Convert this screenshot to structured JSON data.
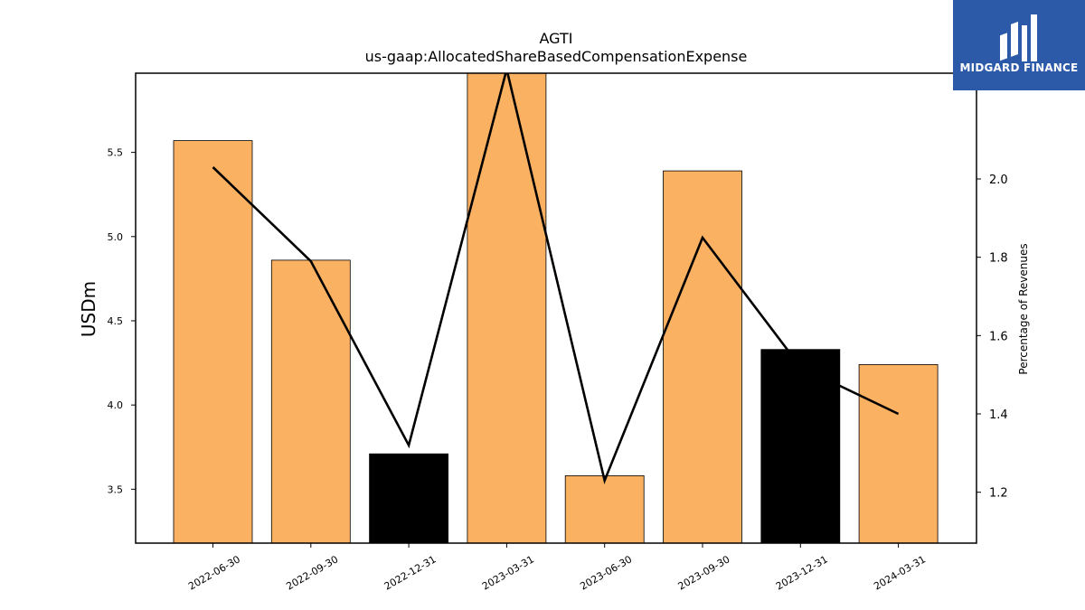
{
  "title": {
    "line1": "AGTI",
    "line2": "us-gaap:AllocatedShareBasedCompensationExpense"
  },
  "logo": {
    "text": "MIDGARD FINANCE",
    "color": "#2c5aa8"
  },
  "chart_data": {
    "type": "bar",
    "categories": [
      "2022-06-30",
      "2022-09-30",
      "2022-12-31",
      "2023-03-31",
      "2023-06-30",
      "2023-09-30",
      "2023-12-31",
      "2024-03-31"
    ],
    "bars": {
      "values": [
        5.57,
        4.86,
        3.71,
        6.02,
        3.58,
        5.39,
        4.33,
        4.24
      ],
      "colors": [
        "#fbb162",
        "#fbb162",
        "#000000",
        "#fbb162",
        "#fbb162",
        "#fbb162",
        "#000000",
        "#fbb162"
      ]
    },
    "line": {
      "values": [
        2.03,
        1.79,
        1.32,
        2.28,
        1.23,
        1.85,
        1.52,
        1.4
      ],
      "color": "#000000"
    },
    "ylabel": "USDm",
    "ylabel_right": "Percentage of Revenues",
    "ylim": [
      3.18,
      5.97
    ],
    "ylim_right": [
      1.07,
      2.27
    ],
    "yticks": [
      "3.5",
      "4.0",
      "4.5",
      "5.0",
      "5.5"
    ],
    "yticks_right": [
      "1.2",
      "1.4",
      "1.6",
      "1.8",
      "2.0"
    ]
  }
}
